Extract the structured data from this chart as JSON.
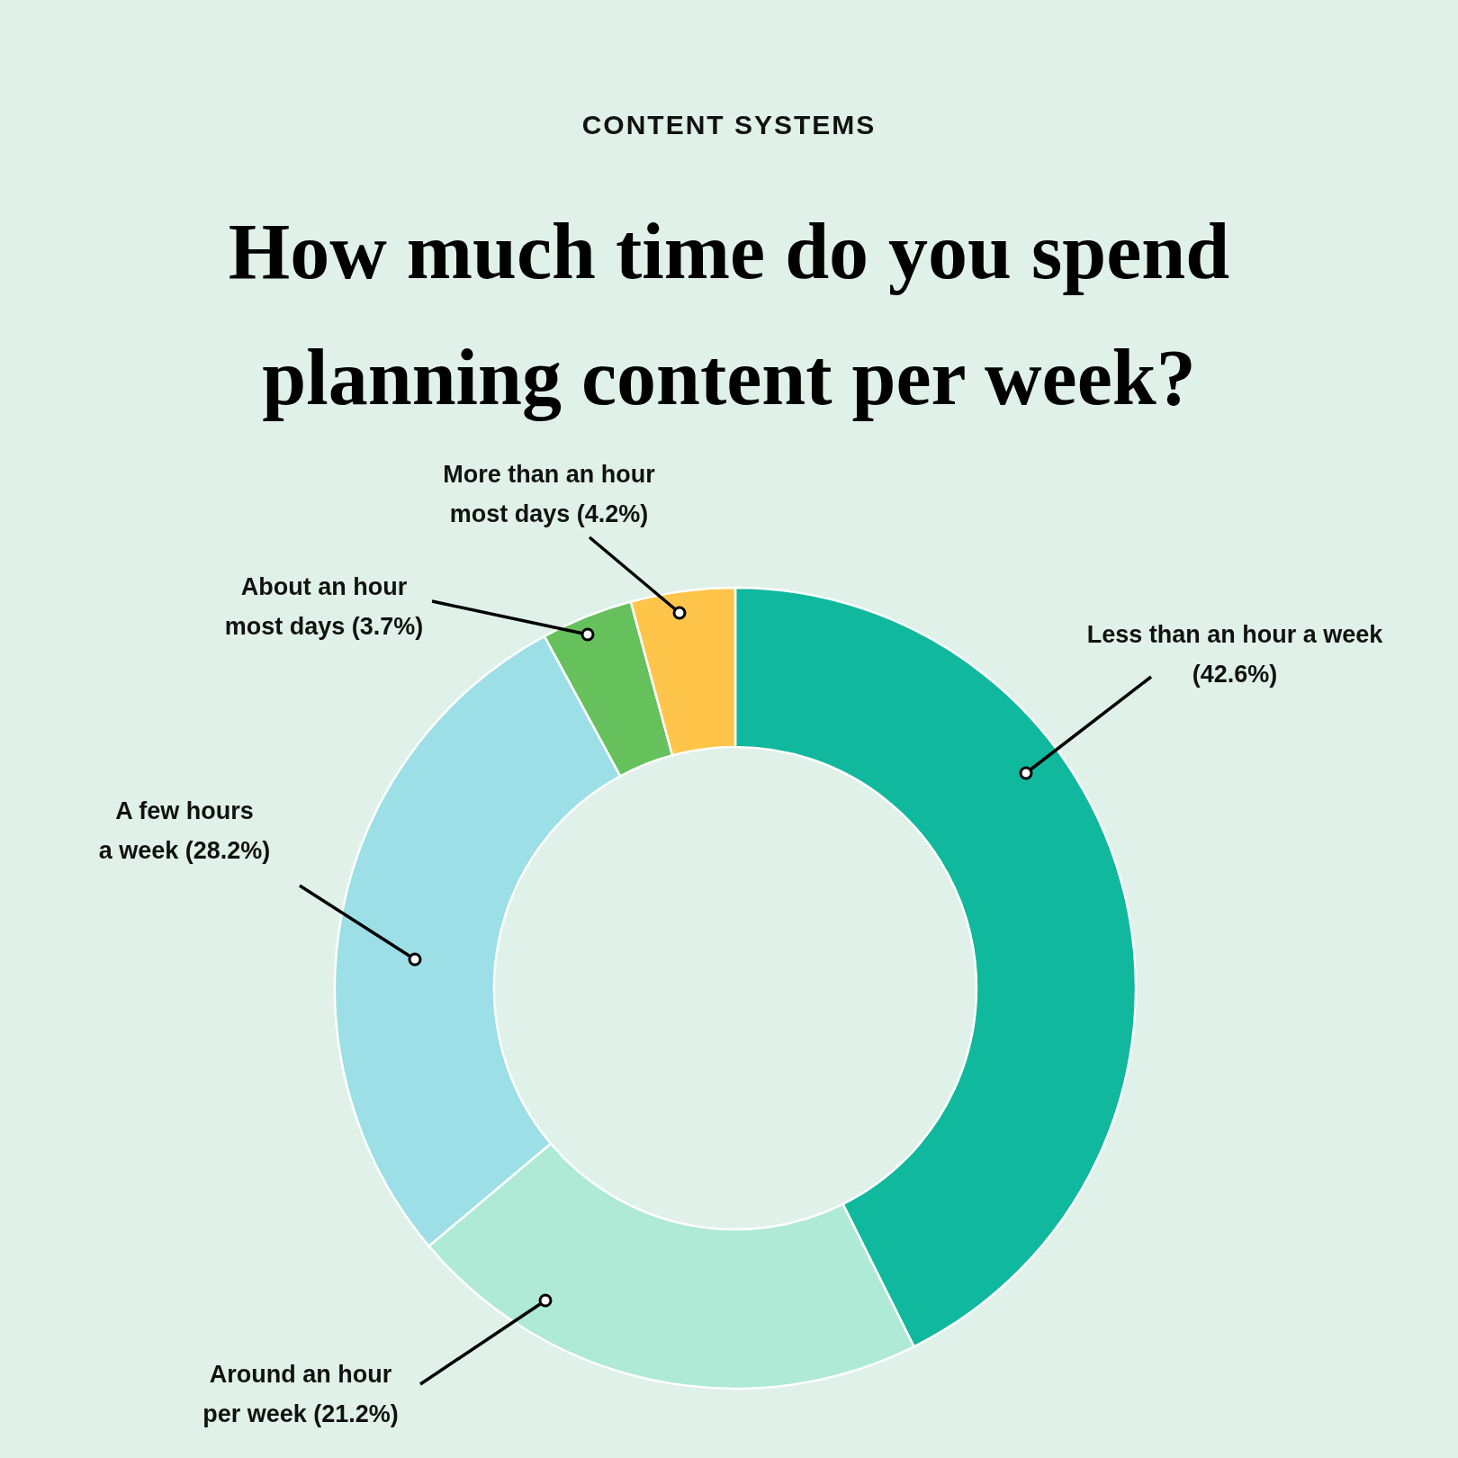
{
  "chart_data": {
    "type": "donut",
    "subtitle": "CONTENT SYSTEMS",
    "title": "How much time do you spend planning content per week?",
    "categories": [
      "Less than an hour a week",
      "Around an hour per week",
      "A few hours a week",
      "About an hour most days",
      "More than an hour most days"
    ],
    "values": [
      42.6,
      21.2,
      28.2,
      3.7,
      4.2
    ],
    "value_labels": [
      "(42.6%)",
      "(21.2%)",
      "(28.2%)",
      "(3.7%)",
      "(4.2%)"
    ],
    "colors": [
      "#10b99e",
      "#aeead6",
      "#9ddfe6",
      "#66c15c",
      "#ffc54a"
    ]
  }
}
